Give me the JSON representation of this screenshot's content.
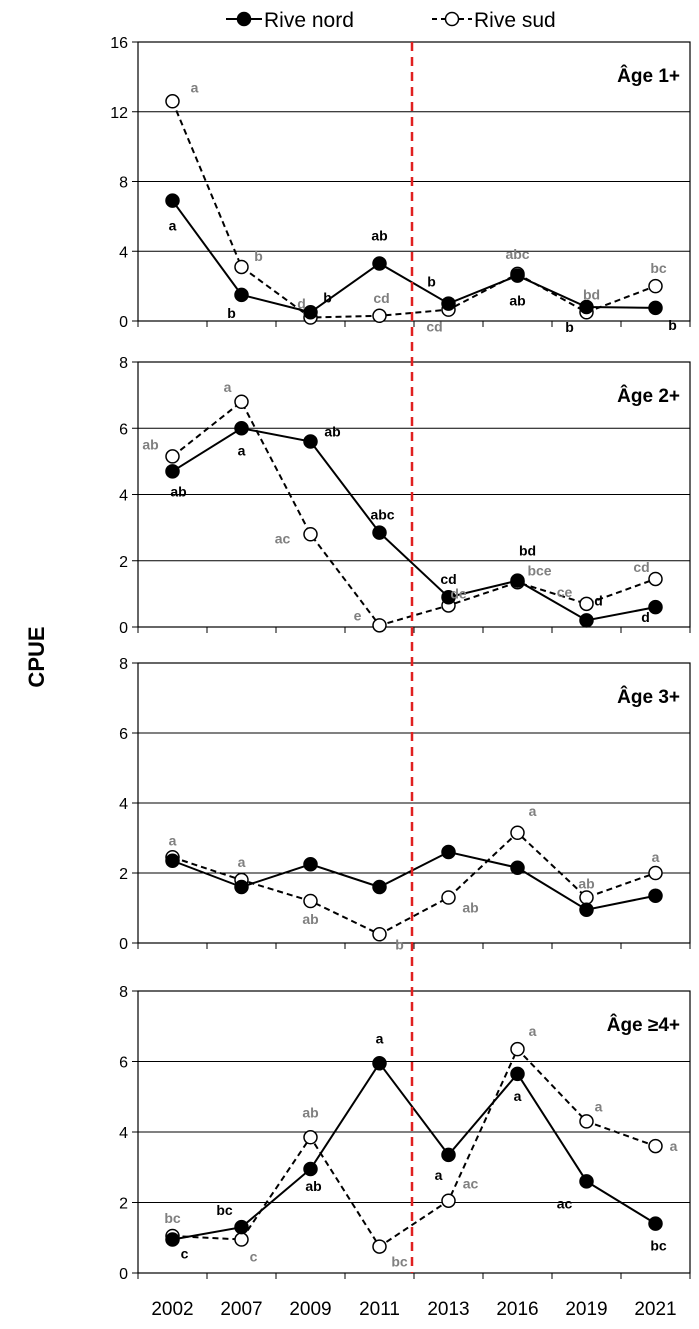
{
  "chart_data": {
    "type": "line",
    "ylabel": "CPUE",
    "xlabel": "",
    "x": [
      "2002",
      "2007",
      "2009",
      "2011",
      "2013",
      "2016",
      "2019",
      "2021"
    ],
    "legend": {
      "placement": "top",
      "entries": [
        {
          "name": "Rive nord",
          "marker": "filled-circle",
          "line": "solid"
        },
        {
          "name": "Rive sud",
          "marker": "open-circle",
          "line": "dashed"
        }
      ]
    },
    "reference_line": {
      "between": [
        "2011",
        "2013"
      ],
      "style": "dashed",
      "color": "#e02020"
    },
    "colors": {
      "nord_label": "#000000",
      "sud_label": "#808080",
      "reference": "#e02020",
      "grid": "#000000"
    },
    "panels": [
      {
        "title": "Âge 1+",
        "ylim": [
          0,
          16
        ],
        "yticks": [
          "0",
          "4",
          "8",
          "12",
          "16"
        ],
        "series": [
          {
            "name": "Rive nord",
            "values": [
              6.9,
              1.5,
              0.5,
              3.3,
              1.0,
              2.6,
              0.8,
              0.75
            ],
            "labels": [
              "a",
              "b",
              "b",
              "ab",
              "b",
              "ab",
              "b",
              "b"
            ]
          },
          {
            "name": "Rive sud",
            "values": [
              12.6,
              3.1,
              0.2,
              0.3,
              0.65,
              2.7,
              0.5,
              2.0
            ],
            "labels": [
              "a",
              "b",
              "d",
              "cd",
              "cd",
              "abc",
              "bd",
              "bc"
            ]
          }
        ]
      },
      {
        "title": "Âge 2+",
        "ylim": [
          0,
          8
        ],
        "yticks": [
          "0",
          "2",
          "4",
          "6",
          "8"
        ],
        "series": [
          {
            "name": "Rive nord",
            "values": [
              4.7,
              6.0,
              5.6,
              2.85,
              0.9,
              1.4,
              0.2,
              0.6
            ],
            "labels": [
              "ab",
              "a",
              "ab",
              "abc",
              "cd",
              "bd",
              "d",
              "d"
            ]
          },
          {
            "name": "Rive sud",
            "values": [
              5.15,
              6.8,
              2.8,
              0.05,
              0.65,
              1.35,
              0.7,
              1.45
            ],
            "labels": [
              "ab",
              "a",
              "ac",
              "e",
              "de",
              "bce",
              "ce",
              "cd"
            ]
          }
        ]
      },
      {
        "title": "Âge 3+",
        "ylim": [
          0,
          8
        ],
        "yticks": [
          "0",
          "2",
          "4",
          "6",
          "8"
        ],
        "series": [
          {
            "name": "Rive nord",
            "values": [
              2.35,
              1.6,
              2.25,
              1.6,
              2.6,
              2.15,
              0.95,
              1.35
            ],
            "labels": [
              "",
              "",
              "",
              "",
              "",
              "",
              "",
              ""
            ]
          },
          {
            "name": "Rive sud",
            "values": [
              2.45,
              1.8,
              1.2,
              0.25,
              1.3,
              3.15,
              1.3,
              2.0
            ],
            "labels": [
              "a",
              "a",
              "ab",
              "b",
              "ab",
              "a",
              "ab",
              "a"
            ]
          }
        ]
      },
      {
        "title": "Âge ≥4+",
        "ylim": [
          0,
          8
        ],
        "yticks": [
          "0",
          "2",
          "4",
          "6",
          "8"
        ],
        "series": [
          {
            "name": "Rive nord",
            "values": [
              0.95,
              1.3,
              2.95,
              5.95,
              3.35,
              5.65,
              2.6,
              1.4
            ],
            "labels": [
              "c",
              "bc",
              "ab",
              "a",
              "a",
              "a",
              "ac",
              "bc"
            ]
          },
          {
            "name": "Rive sud",
            "values": [
              1.05,
              0.95,
              3.85,
              0.75,
              2.05,
              6.35,
              4.3,
              3.6
            ],
            "labels": [
              "bc",
              "c",
              "ab",
              "bc",
              "ac",
              "a",
              "a",
              "a"
            ]
          }
        ]
      }
    ]
  }
}
